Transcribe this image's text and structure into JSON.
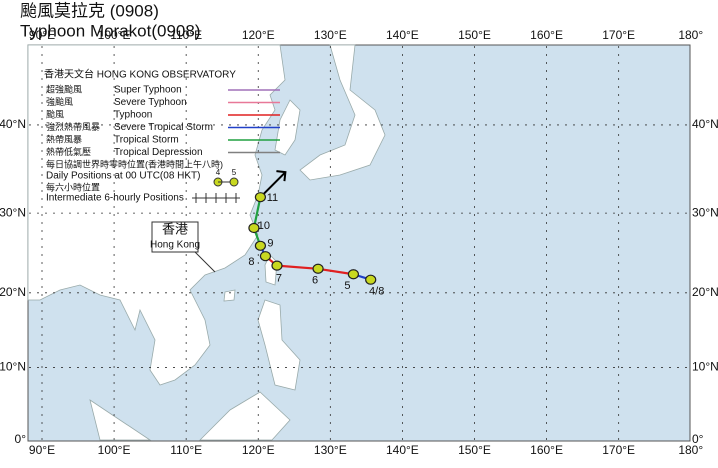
{
  "title_cn": "颱風莫拉克 (0908)",
  "title_en": "Typhoon Morakot(0908)",
  "lon_ticks": [
    {
      "value": 90,
      "label": "90°E"
    },
    {
      "value": 100,
      "label": "100°E"
    },
    {
      "value": 110,
      "label": "110°E"
    },
    {
      "value": 120,
      "label": "120°E"
    },
    {
      "value": 130,
      "label": "130°E"
    },
    {
      "value": 140,
      "label": "140°E"
    },
    {
      "value": 150,
      "label": "150°E"
    },
    {
      "value": 160,
      "label": "160°E"
    },
    {
      "value": 170,
      "label": "170°E"
    },
    {
      "value": 180,
      "label": "180°"
    }
  ],
  "lat_ticks": [
    {
      "value": 0,
      "label": "0°"
    },
    {
      "value": 10,
      "label": "10°N"
    },
    {
      "value": 20,
      "label": "20°N"
    },
    {
      "value": 30,
      "label": "30°N"
    },
    {
      "value": 40,
      "label": "40°N"
    }
  ],
  "legend": {
    "header": "香港天文台 HONG KONG OBSERVATORY",
    "items": [
      {
        "cn": "超強颱風",
        "en": "Super Typhoon",
        "color": "#a070b8"
      },
      {
        "cn": "強颱風",
        "en": "Severe Typhoon",
        "color": "#e87898"
      },
      {
        "cn": "颱風",
        "en": "Typhoon",
        "color": "#e02020"
      },
      {
        "cn": "強烈熱帶風暴",
        "en": "Severe Tropical Storm",
        "color": "#2040c8"
      },
      {
        "cn": "熱帶風暴",
        "en": "Tropical Storm",
        "color": "#20a040"
      },
      {
        "cn": "熱帶低氣壓",
        "en": "Tropical Depression",
        "color": "#808080"
      }
    ],
    "daily_cn": "每日協調世界時零時位置(香港時間上午八時)",
    "daily_en": "Daily Positions at 00 UTC(08 HKT)",
    "daily_sample": [
      "4",
      "5"
    ],
    "six_cn": "每六小時位置",
    "six_en": "Intermediate 6-hourly Positions"
  },
  "hong_kong": {
    "cn": "香港",
    "en": "Hong Kong"
  },
  "track": [
    {
      "label": "4/8",
      "lon": 135.6,
      "lat": 21.7,
      "color": "#2040c8"
    },
    {
      "label": "5",
      "lon": 133.2,
      "lat": 22.4,
      "color": "#e02020"
    },
    {
      "label": "6",
      "lon": 128.3,
      "lat": 23.1,
      "color": "#e02020"
    },
    {
      "label": "7",
      "lon": 122.6,
      "lat": 23.5,
      "color": "#e02020"
    },
    {
      "label": "8",
      "lon": 121.0,
      "lat": 24.7,
      "color": "#2040c8"
    },
    {
      "label": "9",
      "lon": 120.3,
      "lat": 26.0,
      "color": "#20a040"
    },
    {
      "label": "10",
      "lon": 119.4,
      "lat": 28.2,
      "color": "#20a040"
    },
    {
      "label": "11",
      "lon": 120.3,
      "lat": 31.9,
      "color": "#000000"
    }
  ]
}
